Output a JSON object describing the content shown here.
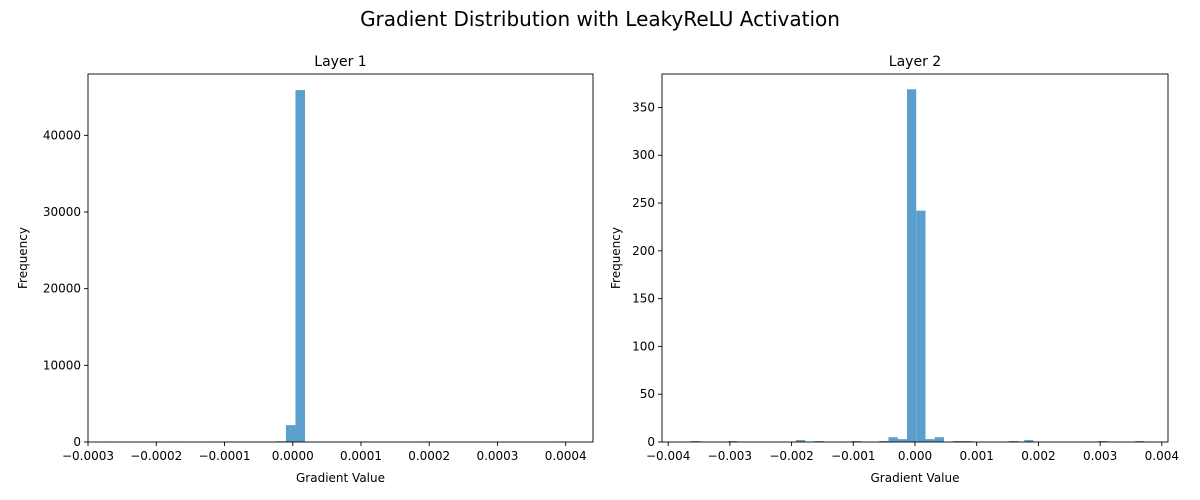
{
  "figure": {
    "title": "Gradient Distribution with LeakyReLU Activation"
  },
  "chart_data": [
    {
      "type": "bar",
      "subtype": "histogram",
      "title": "Layer 1",
      "xlabel": "Gradient Value",
      "ylabel": "Frequency",
      "xlim": [
        -0.0003,
        0.00044
      ],
      "ylim": [
        0,
        48000
      ],
      "xticks": [
        -0.0003,
        -0.0002,
        -0.0001,
        0.0,
        0.0001,
        0.0002,
        0.0003,
        0.0004
      ],
      "xtick_labels": [
        "−0.0003",
        "−0.0002",
        "−0.0001",
        "0.0000",
        "0.0001",
        "0.0002",
        "0.0003",
        "0.0004"
      ],
      "yticks": [
        0,
        10000,
        20000,
        30000,
        40000
      ],
      "ytick_labels": [
        "0",
        "10000",
        "20000",
        "30000",
        "40000"
      ],
      "bar_color": "#5b9fcf",
      "bins": [
        {
          "x0": -0.000276,
          "x1": -0.000262,
          "count": 40
        },
        {
          "x0": -0.000206,
          "x1": -0.000192,
          "count": 40
        },
        {
          "x0": -0.000178,
          "x1": -0.000164,
          "count": 40
        },
        {
          "x0": -0.000122,
          "x1": -0.000108,
          "count": 40
        },
        {
          "x0": -0.000108,
          "x1": -9.4e-05,
          "count": 40
        },
        {
          "x0": -9.4e-05,
          "x1": -8e-05,
          "count": 40
        },
        {
          "x0": -8e-05,
          "x1": -6.6e-05,
          "count": 40
        },
        {
          "x0": -6.6e-05,
          "x1": -5.2e-05,
          "count": 40
        },
        {
          "x0": -5.2e-05,
          "x1": -3.8e-05,
          "count": 40
        },
        {
          "x0": -3.8e-05,
          "x1": -2.4e-05,
          "count": 40
        },
        {
          "x0": -2.4e-05,
          "x1": -1e-05,
          "count": 100
        },
        {
          "x0": -1e-05,
          "x1": 4e-06,
          "count": 2200
        },
        {
          "x0": 4e-06,
          "x1": 1.8e-05,
          "count": 45900
        },
        {
          "x0": 1.8e-05,
          "x1": 3.2e-05,
          "count": 60
        },
        {
          "x0": 3.2e-05,
          "x1": 4.6e-05,
          "count": 40
        },
        {
          "x0": 4.6e-05,
          "x1": 6e-05,
          "count": 40
        },
        {
          "x0": 6e-05,
          "x1": 7.4e-05,
          "count": 40
        },
        {
          "x0": 7.4e-05,
          "x1": 8.8e-05,
          "count": 40
        },
        {
          "x0": 8.8e-05,
          "x1": 0.000102,
          "count": 40
        },
        {
          "x0": 0.000102,
          "x1": 0.000116,
          "count": 40
        },
        {
          "x0": 0.000186,
          "x1": 0.0002,
          "count": 40
        },
        {
          "x0": 0.000382,
          "x1": 0.000396,
          "count": 40
        }
      ]
    },
    {
      "type": "bar",
      "subtype": "histogram",
      "title": "Layer 2",
      "xlabel": "Gradient Value",
      "ylabel": "Frequency",
      "xlim": [
        -0.0041,
        0.0041
      ],
      "ylim": [
        0,
        385
      ],
      "xticks": [
        -0.004,
        -0.003,
        -0.002,
        -0.001,
        0.0,
        0.001,
        0.002,
        0.003,
        0.004
      ],
      "xtick_labels": [
        "−0.004",
        "−0.003",
        "−0.002",
        "−0.001",
        "0.000",
        "0.001",
        "0.002",
        "0.003",
        "0.004"
      ],
      "yticks": [
        0,
        50,
        100,
        150,
        200,
        250,
        300,
        350
      ],
      "ytick_labels": [
        "0",
        "50",
        "100",
        "150",
        "200",
        "250",
        "300",
        "350"
      ],
      "bar_color": "#5b9fcf",
      "bins": [
        {
          "x0": -0.00363,
          "x1": -0.00348,
          "count": 1
        },
        {
          "x0": -0.00303,
          "x1": -0.00288,
          "count": 1
        },
        {
          "x0": -0.00193,
          "x1": -0.00178,
          "count": 2
        },
        {
          "x0": -0.00163,
          "x1": -0.00148,
          "count": 1
        },
        {
          "x0": -0.00103,
          "x1": -0.00088,
          "count": 1
        },
        {
          "x0": -0.00058,
          "x1": -0.00043,
          "count": 1
        },
        {
          "x0": -0.00043,
          "x1": -0.00028,
          "count": 5
        },
        {
          "x0": -0.00028,
          "x1": -0.00013,
          "count": 3
        },
        {
          "x0": -0.00013,
          "x1": 2e-05,
          "count": 369
        },
        {
          "x0": 2e-05,
          "x1": 0.00017,
          "count": 242
        },
        {
          "x0": 0.00017,
          "x1": 0.00032,
          "count": 3
        },
        {
          "x0": 0.00032,
          "x1": 0.00047,
          "count": 5
        },
        {
          "x0": 0.00062,
          "x1": 0.00077,
          "count": 1
        },
        {
          "x0": 0.00077,
          "x1": 0.00092,
          "count": 1
        },
        {
          "x0": 0.00152,
          "x1": 0.00167,
          "count": 1
        },
        {
          "x0": 0.00177,
          "x1": 0.00192,
          "count": 2
        },
        {
          "x0": 0.00297,
          "x1": 0.00312,
          "count": 1
        },
        {
          "x0": 0.00357,
          "x1": 0.00372,
          "count": 1
        }
      ]
    }
  ]
}
